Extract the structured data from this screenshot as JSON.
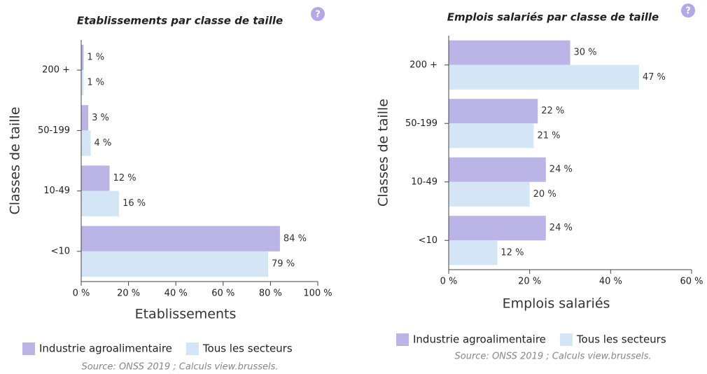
{
  "chart_data": [
    {
      "type": "bar",
      "orientation": "horizontal",
      "title": "Etablissements par classe de taille",
      "xlabel": "Etablissements",
      "ylabel": "Classes de taille",
      "categories": [
        "200 +",
        "50-199",
        "10-49",
        "<10"
      ],
      "series": [
        {
          "name": "Industrie agroalimentaire",
          "color": "#bab5e6",
          "values": [
            1,
            3,
            12,
            84
          ],
          "value_labels": [
            "1 %",
            "3 %",
            "12 %",
            "84 %"
          ]
        },
        {
          "name": "Tous les secteurs",
          "color": "#d4e5f6",
          "values": [
            1,
            4,
            16,
            79
          ],
          "value_labels": [
            "1 %",
            "4 %",
            "16 %",
            "79 %"
          ]
        }
      ],
      "xlim": [
        0,
        100
      ],
      "xticks": [
        {
          "value": 0,
          "label": "0 %"
        },
        {
          "value": 20,
          "label": "20 %"
        },
        {
          "value": 40,
          "label": "40 %"
        },
        {
          "value": 60,
          "label": "60 %"
        },
        {
          "value": 80,
          "label": "80 %"
        },
        {
          "value": 100,
          "label": "100 %"
        }
      ],
      "source": "Source: ONSS 2019 ; Calculs view.brussels."
    },
    {
      "type": "bar",
      "orientation": "horizontal",
      "title": "Emplois salariés par classe de taille",
      "xlabel": "Emplois salariés",
      "ylabel": "Classes de taille",
      "categories": [
        "200 +",
        "50-199",
        "10-49",
        "<10"
      ],
      "series": [
        {
          "name": "Industrie agroalimentaire",
          "color": "#bab5e6",
          "values": [
            30,
            22,
            24,
            24
          ],
          "value_labels": [
            "30 %",
            "22 %",
            "24 %",
            "24 %"
          ]
        },
        {
          "name": "Tous les secteurs",
          "color": "#d4e5f6",
          "values": [
            47,
            21,
            20,
            12
          ],
          "value_labels": [
            "47 %",
            "21 %",
            "20 %",
            "12 %"
          ]
        }
      ],
      "xlim": [
        0,
        60
      ],
      "xticks": [
        {
          "value": 0,
          "label": "0 %"
        },
        {
          "value": 20,
          "label": "20 %"
        },
        {
          "value": 40,
          "label": "40 %"
        },
        {
          "value": 60,
          "label": "60 %"
        }
      ],
      "source": "Source: ONSS 2019 ; Calculs view.brussels."
    }
  ]
}
